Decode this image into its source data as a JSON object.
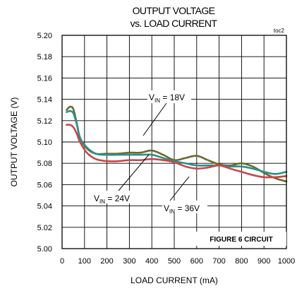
{
  "chart_data": {
    "type": "line",
    "title": "OUTPUT VOLTAGE",
    "subtitle": "vs. LOAD CURRENT",
    "xlabel": "LOAD CURRENT (mA)",
    "ylabel": "OUTPUT VOLTAGE (V)",
    "tag": "toc2",
    "xlim": [
      0,
      1000
    ],
    "ylim": [
      5.0,
      5.2
    ],
    "x_ticks": [
      "0",
      "100",
      "200",
      "300",
      "400",
      "500",
      "600",
      "700",
      "800",
      "900",
      "1000"
    ],
    "y_ticks": [
      "5.00",
      "5.02",
      "5.04",
      "5.06",
      "5.08",
      "5.10",
      "5.12",
      "5.14",
      "5.16",
      "5.18",
      "5.20"
    ],
    "grid": true,
    "series": [
      {
        "name": "V_IN = 18V",
        "color": "#6b6b2a",
        "x": [
          20,
          35,
          50,
          65,
          80,
          110,
          150,
          200,
          250,
          300,
          350,
          400,
          450,
          500,
          550,
          600,
          650,
          700,
          750,
          800,
          850,
          900,
          950,
          1000
        ],
        "y": [
          5.13,
          5.133,
          5.131,
          5.118,
          5.104,
          5.094,
          5.089,
          5.089,
          5.089,
          5.09,
          5.09,
          5.092,
          5.088,
          5.083,
          5.085,
          5.087,
          5.083,
          5.079,
          5.078,
          5.08,
          5.077,
          5.071,
          5.066,
          5.063
        ]
      },
      {
        "name": "V_IN = 24V",
        "color": "#2e8e8e",
        "x": [
          20,
          35,
          50,
          65,
          80,
          110,
          150,
          200,
          250,
          300,
          350,
          400,
          450,
          500,
          550,
          600,
          650,
          700,
          750,
          800,
          850,
          900,
          950,
          1000
        ],
        "y": [
          5.128,
          5.129,
          5.127,
          5.117,
          5.104,
          5.095,
          5.089,
          5.088,
          5.088,
          5.088,
          5.088,
          5.088,
          5.085,
          5.082,
          5.08,
          5.078,
          5.078,
          5.078,
          5.077,
          5.077,
          5.075,
          5.072,
          5.07,
          5.072
        ]
      },
      {
        "name": "V_IN = 36V",
        "color": "#c84848",
        "x": [
          20,
          35,
          50,
          65,
          80,
          110,
          150,
          200,
          250,
          300,
          350,
          400,
          450,
          500,
          550,
          600,
          650,
          700,
          750,
          800,
          850,
          900,
          950,
          1000
        ],
        "y": [
          5.116,
          5.116,
          5.114,
          5.108,
          5.1,
          5.09,
          5.084,
          5.082,
          5.082,
          5.083,
          5.083,
          5.084,
          5.083,
          5.081,
          5.077,
          5.075,
          5.076,
          5.078,
          5.075,
          5.072,
          5.069,
          5.067,
          5.067,
          5.068
        ]
      }
    ],
    "annotations": [
      {
        "label": "V",
        "sub": "IN",
        "value": " = 18V"
      },
      {
        "label": "V",
        "sub": "IN",
        "value": " = 24V"
      },
      {
        "label": "V",
        "sub": "IN",
        "value": " = 36V"
      }
    ],
    "box_label": "FIGURE 6 CIRCUIT"
  }
}
